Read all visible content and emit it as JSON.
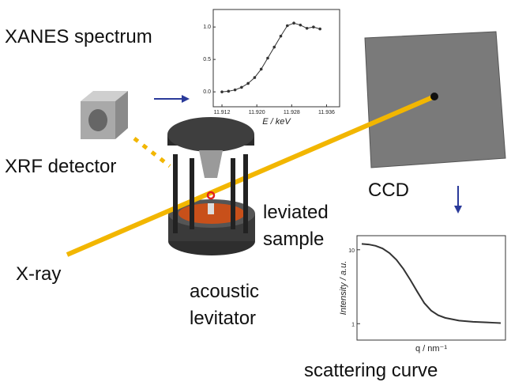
{
  "labels": {
    "xanes": "XANES spectrum",
    "xrf": "XRF detector",
    "ccd": "CCD",
    "leviated": "leviated",
    "sample": "sample",
    "xray": "X-ray",
    "acoustic": "acoustic",
    "levitator": "levitator",
    "scattering": "scattering curve"
  },
  "xanes_chart": {
    "type": "line",
    "x_label": "E / keV",
    "x": [
      11.912,
      11.9135,
      11.915,
      11.9165,
      11.918,
      11.9195,
      11.921,
      11.9225,
      11.924,
      11.9255,
      11.927,
      11.9285,
      11.93,
      11.9315,
      11.933,
      11.9345
    ],
    "values": [
      0.0,
      0.01,
      0.03,
      0.07,
      0.13,
      0.22,
      0.35,
      0.52,
      0.69,
      0.86,
      1.02,
      1.06,
      1.03,
      0.98,
      1.0,
      0.97
    ],
    "color": "#333333",
    "xlim": [
      11.91,
      11.939
    ],
    "ylim": [
      -0.23,
      1.27
    ],
    "xticks": [
      11.912,
      {
        "value": 11.92,
        "label": "11.920"
      },
      11.928,
      11.936
    ],
    "yticks": [
      {
        "value": 0,
        "label": "0.0"
      },
      {
        "value": 0.5,
        "label": "0.5"
      },
      {
        "value": 1,
        "label": "1.0"
      }
    ]
  },
  "scattering_chart": {
    "type": "line",
    "x_label": "q / nm⁻¹",
    "y_label": "Intensity / a.u.",
    "values": [
      12,
      11.8,
      11.3,
      10.4,
      9,
      7.3,
      5.5,
      3.9,
      2.7,
      1.9,
      1.5,
      1.3,
      1.2,
      1.15,
      1.1,
      1.08,
      1.06,
      1.05,
      1.04,
      1.03,
      1.02
    ],
    "color": "#333333",
    "log_y": true,
    "ylim": [
      0.6,
      15.5
    ],
    "yticks": [
      10,
      1
    ]
  }
}
